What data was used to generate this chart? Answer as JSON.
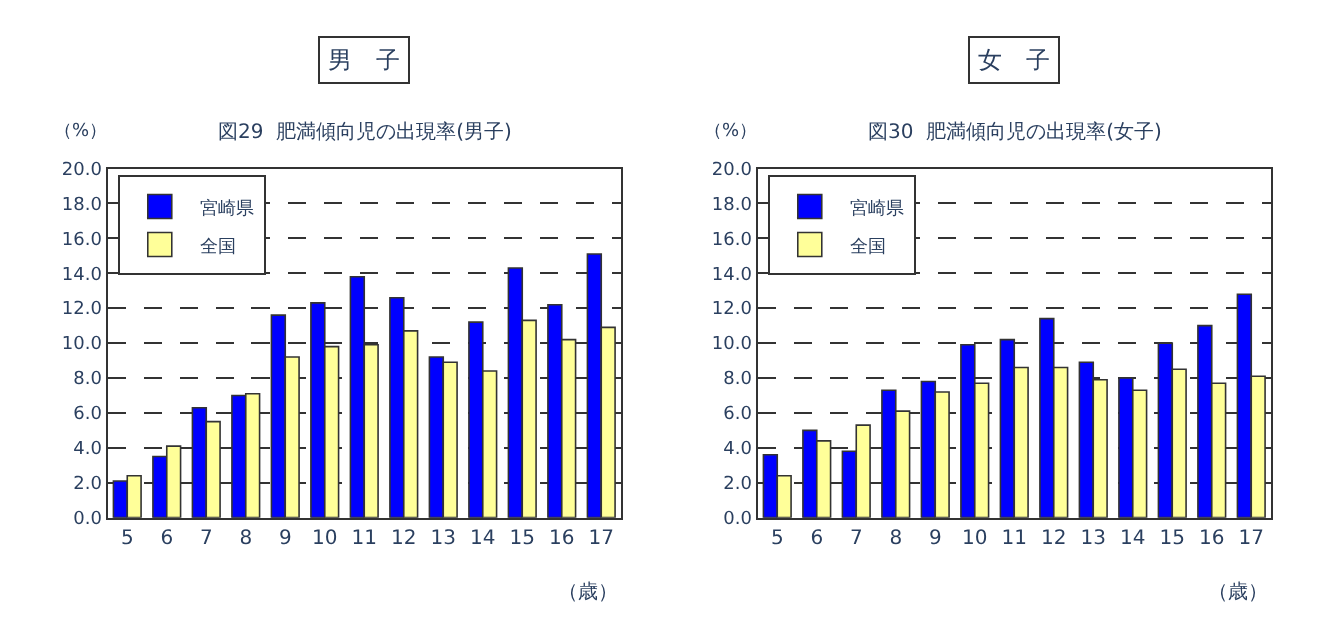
{
  "chart_data": [
    {
      "type": "bar",
      "title": "男　子",
      "subtitle": "図29  肥満傾向児の出現率(男子)",
      "ylabel": "（%）",
      "xlabel": "（歳）",
      "categories": [
        "5",
        "6",
        "7",
        "8",
        "9",
        "10",
        "11",
        "12",
        "13",
        "14",
        "15",
        "16",
        "17"
      ],
      "series": [
        {
          "name": "宮崎県",
          "color": "#0000ff",
          "values": [
            2.1,
            3.5,
            6.3,
            7.0,
            11.6,
            12.3,
            13.8,
            12.6,
            9.2,
            11.2,
            14.3,
            12.2,
            15.1
          ]
        },
        {
          "name": "全国",
          "color": "#ffff99",
          "values": [
            2.4,
            4.1,
            5.5,
            7.1,
            9.2,
            9.8,
            9.9,
            10.7,
            8.9,
            8.4,
            11.3,
            10.2,
            10.9
          ]
        }
      ],
      "ylim": [
        0,
        20
      ],
      "yticks": [
        {
          "value": 0,
          "label": "0.0"
        },
        {
          "value": 2,
          "label": "2.0"
        },
        {
          "value": 4,
          "label": "4.0"
        },
        {
          "value": 6,
          "label": "6.0"
        },
        {
          "value": 8,
          "label": "8.0"
        },
        {
          "value": 10,
          "label": "10.0"
        },
        {
          "value": 12,
          "label": "12.0"
        },
        {
          "value": 14,
          "label": "14.0"
        },
        {
          "value": 16,
          "label": "16.0"
        },
        {
          "value": 18,
          "label": "18.0"
        },
        {
          "value": 20,
          "label": "20.0"
        }
      ],
      "grid": "y",
      "line_style": "dashed",
      "legend": "top left"
    },
    {
      "type": "bar",
      "title": "女　子",
      "subtitle": "図30  肥満傾向児の出現率(女子)",
      "ylabel": "（%）",
      "xlabel": "（歳）",
      "categories": [
        "5",
        "6",
        "7",
        "8",
        "9",
        "10",
        "11",
        "12",
        "13",
        "14",
        "15",
        "16",
        "17"
      ],
      "series": [
        {
          "name": "宮崎県",
          "color": "#0000ff",
          "values": [
            3.6,
            5.0,
            3.8,
            7.3,
            7.8,
            9.9,
            10.2,
            11.4,
            8.9,
            8.0,
            10.0,
            11.0,
            12.8
          ]
        },
        {
          "name": "全国",
          "color": "#ffff99",
          "values": [
            2.4,
            4.4,
            5.3,
            6.1,
            7.2,
            7.7,
            8.6,
            8.6,
            7.9,
            7.3,
            8.5,
            7.7,
            8.1
          ]
        }
      ],
      "ylim": [
        0,
        20
      ],
      "yticks": [
        {
          "value": 0,
          "label": "0.0"
        },
        {
          "value": 2,
          "label": "2.0"
        },
        {
          "value": 4,
          "label": "4.0"
        },
        {
          "value": 6,
          "label": "6.0"
        },
        {
          "value": 8,
          "label": "8.0"
        },
        {
          "value": 10,
          "label": "10.0"
        },
        {
          "value": 12,
          "label": "12.0"
        },
        {
          "value": 14,
          "label": "14.0"
        },
        {
          "value": 16,
          "label": "16.0"
        },
        {
          "value": 18,
          "label": "18.0"
        },
        {
          "value": 20,
          "label": "20.0"
        }
      ],
      "grid": "y",
      "line_style": "dashed",
      "legend": "top left"
    }
  ]
}
